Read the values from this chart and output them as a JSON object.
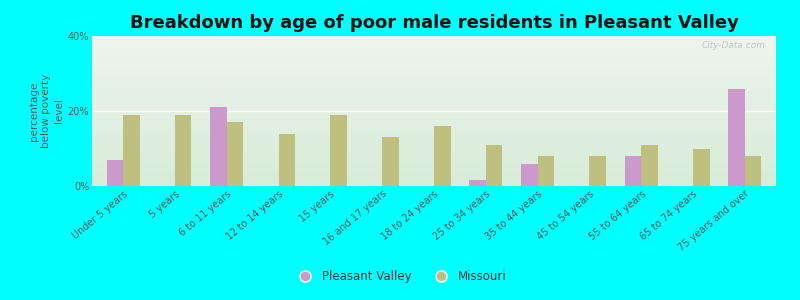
{
  "title": "Breakdown by age of poor male residents in Pleasant Valley",
  "ylabel": "percentage\nbelow poverty\nlevel",
  "categories": [
    "Under 5 years",
    "5 years",
    "6 to 11 years",
    "12 to 14 years",
    "15 years",
    "16 and 17 years",
    "18 to 24 years",
    "25 to 34 years",
    "35 to 44 years",
    "45 to 54 years",
    "55 to 64 years",
    "65 to 74 years",
    "75 years and over"
  ],
  "pleasant_valley": [
    7.0,
    0.0,
    21.0,
    0.0,
    0.0,
    0.0,
    0.0,
    1.5,
    6.0,
    0.0,
    8.0,
    0.0,
    26.0
  ],
  "missouri": [
    19.0,
    19.0,
    17.0,
    14.0,
    19.0,
    13.0,
    16.0,
    11.0,
    8.0,
    8.0,
    11.0,
    10.0,
    8.0
  ],
  "pv_color": "#cc99cc",
  "mo_color": "#bfbf80",
  "background_color": "#00ffff",
  "bg_top_color": "#eef5ee",
  "bg_bottom_color": "#d8ecd8",
  "ylim": [
    0,
    40
  ],
  "yticks": [
    0,
    20,
    40
  ],
  "ytick_labels": [
    "0%",
    "20%",
    "40%"
  ],
  "bar_width": 0.32,
  "title_fontsize": 13,
  "axis_label_fontsize": 7.5,
  "tick_fontsize": 7.0,
  "legend_label_pv": "Pleasant Valley",
  "legend_label_mo": "Missouri",
  "watermark": "City-Data.com"
}
